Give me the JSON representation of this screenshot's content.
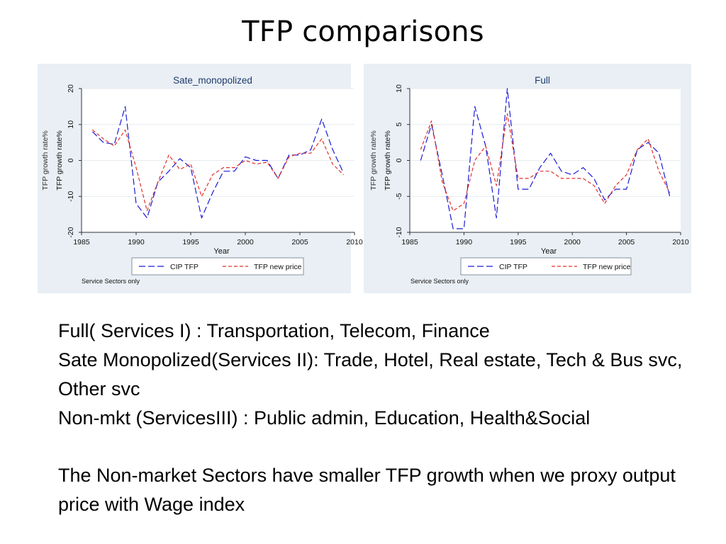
{
  "slide": {
    "title": "TFP comparisons",
    "lines": [
      "Full( Services I) : Transportation, Telecom, Finance",
      "Sate Monopolized(Services II): Trade, Hotel, Real estate,  Tech & Bus svc, Other svc",
      "Non-mkt (ServicesIII) : Public admin, Education, Health&Social"
    ],
    "conclusion": "The Non-market Sectors have smaller TFP growth when we proxy output price with Wage index"
  },
  "chart_data": [
    {
      "type": "line",
      "title": "Sate_monopolized",
      "xlabel": "Year",
      "ylabel": "TFP growth rate%",
      "ylabel_secondary": "TFP growth rate%",
      "note": "Service Sectors only",
      "xlim": [
        1985,
        2010
      ],
      "ylim": [
        -20,
        20
      ],
      "xticks": [
        1985,
        1990,
        1995,
        2000,
        2005,
        2010
      ],
      "yticks": [
        -20,
        -10,
        0,
        10,
        20
      ],
      "grid": true,
      "legend": "bottom",
      "series": [
        {
          "name": "CIP TFP",
          "color": "#1a1ad6",
          "dash": "long-dash",
          "x": [
            1986,
            1987,
            1988,
            1989,
            1990,
            1991,
            1992,
            1993,
            1994,
            1995,
            1996,
            1997,
            1998,
            1999,
            2000,
            2001,
            2002,
            2003,
            2004,
            2005,
            2006,
            2007,
            2008,
            2009
          ],
          "values": [
            8,
            5,
            4.5,
            15,
            -12,
            -16,
            -6,
            -3,
            0.5,
            -2,
            -16,
            -9,
            -3,
            -3,
            1,
            0,
            0,
            -5,
            1.5,
            1.5,
            3,
            11.5,
            3,
            -3.5
          ]
        },
        {
          "name": "TFP new price",
          "color": "#e0302a",
          "dash": "short-dash",
          "x": [
            1986,
            1987,
            1988,
            1989,
            1990,
            1991,
            1992,
            1993,
            1994,
            1995,
            1996,
            1997,
            1998,
            1999,
            2000,
            2001,
            2002,
            2003,
            2004,
            2005,
            2006,
            2007,
            2008,
            2009
          ],
          "values": [
            8.5,
            6,
            4,
            8.5,
            -2,
            -14,
            -6,
            1.5,
            -2.5,
            -1,
            -10,
            -4,
            -2,
            -2,
            0,
            -1,
            -0.5,
            -5,
            1,
            2,
            2,
            6,
            -1,
            -4
          ]
        }
      ]
    },
    {
      "type": "line",
      "title": "Full",
      "xlabel": "Year",
      "ylabel": "TFP growth rate%",
      "ylabel_secondary": "TFP growth rate%",
      "note": "Service Sectors only",
      "xlim": [
        1985,
        2010
      ],
      "ylim": [
        -10,
        10
      ],
      "xticks": [
        1985,
        1990,
        1995,
        2000,
        2005,
        2010
      ],
      "yticks": [
        -10,
        -5,
        0,
        5,
        10
      ],
      "grid": true,
      "legend": "bottom",
      "series": [
        {
          "name": "CIP TFP",
          "color": "#1a1ad6",
          "dash": "long-dash",
          "x": [
            1986,
            1987,
            1988,
            1989,
            1990,
            1991,
            1992,
            1993,
            1994,
            1995,
            1996,
            1997,
            1998,
            1999,
            2000,
            2001,
            2002,
            2003,
            2004,
            2005,
            2006,
            2007,
            2008,
            2009
          ],
          "values": [
            0,
            5,
            -2,
            -9.5,
            -9.5,
            7.5,
            2,
            -8,
            10,
            -4,
            -4,
            -1,
            1,
            -1.5,
            -2,
            -1,
            -2.5,
            -5.5,
            -4,
            -4,
            1.5,
            2.5,
            1,
            -5
          ]
        },
        {
          "name": "TFP new price",
          "color": "#e0302a",
          "dash": "short-dash",
          "x": [
            1986,
            1987,
            1988,
            1989,
            1990,
            1991,
            1992,
            1993,
            1994,
            1995,
            1996,
            1997,
            1998,
            1999,
            2000,
            2001,
            2002,
            2003,
            2004,
            2005,
            2006,
            2007,
            2008,
            2009
          ],
          "values": [
            1.5,
            5.5,
            -3,
            -7,
            -6,
            0,
            2,
            -3.5,
            6.5,
            -2.5,
            -2.5,
            -1.5,
            -1.5,
            -2.5,
            -2.5,
            -2.5,
            -3.5,
            -6,
            -3.5,
            -2,
            1.5,
            3,
            -1.5,
            -4.5
          ]
        }
      ]
    }
  ]
}
